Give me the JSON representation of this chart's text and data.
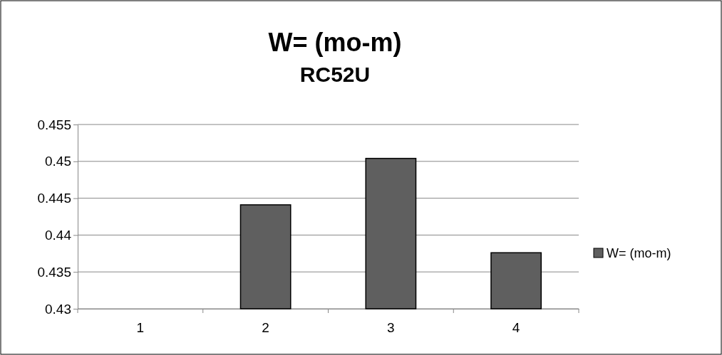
{
  "chart_data": {
    "type": "bar",
    "title": "W= (mo-m)",
    "subtitle": "RC52U",
    "categories": [
      "1",
      "2",
      "3",
      "4"
    ],
    "series": [
      {
        "name": "W= (mo-m)",
        "color": "#5f5f5f",
        "values": [
          null,
          0.4441,
          0.4504,
          0.4376
        ]
      }
    ],
    "ylim": [
      0.43,
      0.455
    ],
    "yticks": [
      0.43,
      0.435,
      0.44,
      0.445,
      0.45,
      0.455
    ],
    "grid": "y",
    "legend": "right"
  }
}
